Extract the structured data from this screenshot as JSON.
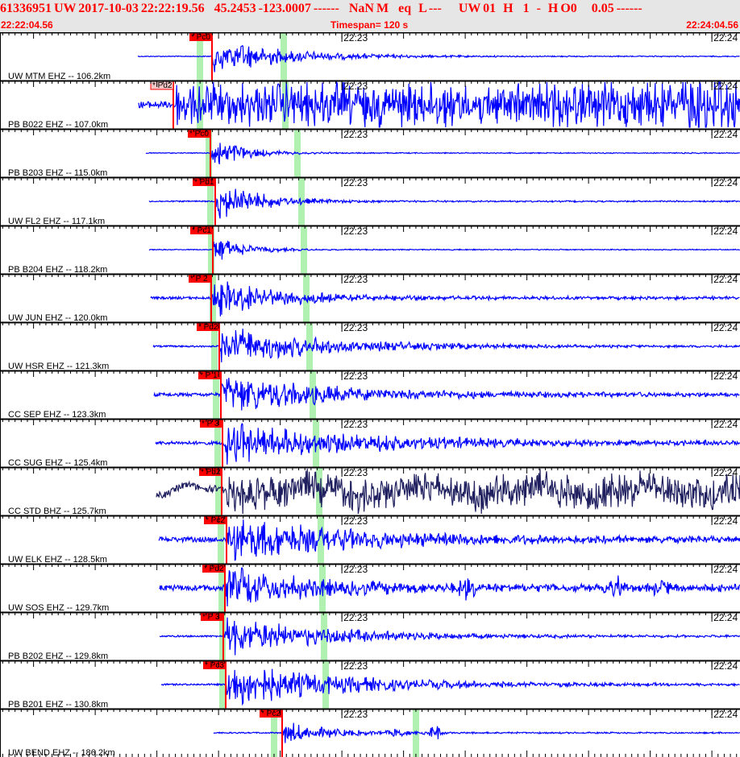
{
  "header": {
    "title": "61336951 UW 2017-10-03 22:22:19.56    45.2453 -123.0007 ------    NaN M    eq   L ---       UW 01   H    1   -   H O0      0.05 ------",
    "start_time": "22:22:04.56",
    "timespan": "Timespan= 120 s",
    "end_time": "22:24:04.56"
  },
  "minute_labels": [
    "22:23",
    "22:24"
  ],
  "colors": {
    "trace": "#0000ff",
    "trace_broadband": "#202060",
    "pick": "#ff0000",
    "pick_unused": "#f4c8c8",
    "window": "#b0f0b0",
    "header_bg": "#e6e6e6",
    "header_text": "#ff0000"
  },
  "channels": [
    {
      "label": "UW MTM EHZ -- 106.2km",
      "pick": "* Pc0"
    },
    {
      "label": "PB B022 EHZ -- 107.0km",
      "pick": "* Pd2"
    },
    {
      "label": "PB B203 EHZ -- 115.0km",
      "pick": "* Pc0"
    },
    {
      "label": "UW FL2 EHZ -- 117.1km",
      "pick": "* Pd1"
    },
    {
      "label": "PB B204 EHZ -- 118.2km",
      "pick": "* Pc1"
    },
    {
      "label": "UW JUN EHZ -- 120.0km",
      "pick": "* P 2"
    },
    {
      "label": "UW HSR EHZ -- 121.3km",
      "pick": "* Pd2"
    },
    {
      "label": "CC SEP EHZ -- 123.3km",
      "pick": "* P 1"
    },
    {
      "label": "CC SUG EHZ -- 125.4km",
      "pick": "* P 3"
    },
    {
      "label": "CC STD BHZ -- 125.7km",
      "pick": "* Pd2"
    },
    {
      "label": "UW ELK EHZ -- 128.5km",
      "pick": "* Pc2"
    },
    {
      "label": "UW SOS EHZ -- 129.7km",
      "pick": "* Pd2"
    },
    {
      "label": "PB B202 EHZ -- 129.8km",
      "pick": "* P 3"
    },
    {
      "label": "PB B201 EHZ -- 130.8km",
      "pick": "* Pc3"
    },
    {
      "label": "UW BEND EHZ -- 186.2km",
      "pick": "* Pc2"
    }
  ]
}
